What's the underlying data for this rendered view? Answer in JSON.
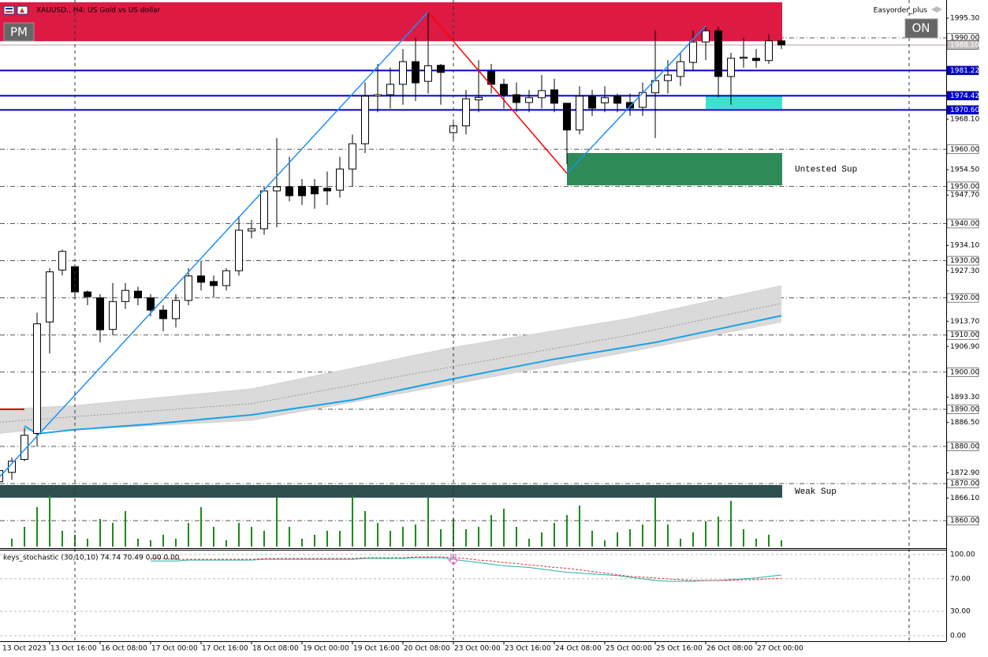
{
  "ui": {
    "pm": "PM",
    "on": "ON",
    "expert": "Easyorder_plus"
  },
  "chart_data": [
    {
      "type": "candlestick",
      "title": "XAUUSD., H4: US Gold vs US dollar",
      "categories": [
        "13 Oct 2023",
        null,
        null,
        null,
        "13 Oct 16:00",
        null,
        null,
        null,
        "16 Oct 08:00",
        null,
        null,
        null,
        "17 Oct 00:00",
        null,
        null,
        null,
        "17 Oct 16:00",
        null,
        null,
        null,
        "18 Oct 08:00",
        null,
        null,
        null,
        "19 Oct 00:00",
        null,
        null,
        null,
        "19 Oct 16:00",
        null,
        null,
        null,
        "20 Oct 08:00",
        null,
        null,
        null,
        "23 Oct 00:00",
        null,
        null,
        null,
        "23 Oct 16:00",
        null,
        null,
        null,
        "24 Oct 08:00",
        null,
        null,
        null,
        "25 Oct 00:00",
        null,
        null,
        null,
        "25 Oct 16:00",
        null,
        null,
        null,
        "26 Oct 08:00",
        null,
        null,
        null,
        "27 Oct 00:00",
        null,
        null
      ],
      "open": [
        1870.5,
        1873,
        1876.5,
        1883.5,
        1913.5,
        1927.5,
        1928.4,
        1921.6,
        1920,
        1911.5,
        1919,
        1921.8,
        1920,
        1916.7,
        1914.4,
        1919.3,
        1925.9,
        1924.4,
        1923.3,
        1927.3,
        1938,
        1938.6,
        1948.8,
        1949.9,
        1950,
        1950,
        1949.5,
        1949,
        1954.7,
        1961.5,
        1974.3,
        1974.7,
        1977.5,
        1983.6,
        1978.3,
        1982.6,
        1964.5,
        1966.3,
        1973.3,
        1981,
        1977.5,
        1974.7,
        1972.6,
        1973.9,
        1976,
        1972.4,
        1965.2,
        1974.3,
        1972.5,
        1974.3,
        1972.6,
        1971.3,
        1975.2,
        1978.5,
        1979.6,
        1983.4,
        1988.9,
        1991.9,
        1979.6,
        1984.5,
        1984.5,
        1983.9,
        1989.2
      ],
      "high": [
        1875,
        1877,
        1885,
        1916,
        1928,
        1933,
        1929,
        1922,
        1921,
        1924,
        1924,
        1923,
        1921,
        1918,
        1921,
        1928,
        1930,
        1926,
        1928,
        1942,
        1941,
        1950,
        1963,
        1958,
        1952,
        1952,
        1954,
        1958,
        1964,
        1978,
        1983,
        1982,
        1987,
        1990,
        1997,
        1983,
        1968,
        1976,
        1984,
        1983,
        1979,
        1978,
        1976,
        1980,
        1979,
        1972.5,
        1977,
        1976,
        1977,
        1975,
        1975,
        1978,
        1992,
        1984,
        1986,
        1992,
        1993,
        1993,
        1986,
        1990,
        1987,
        1991,
        1989.5
      ],
      "low": [
        1869,
        1871,
        1876,
        1880,
        1905,
        1926,
        1920,
        1918,
        1908,
        1910,
        1917,
        1918,
        1915,
        1911,
        1912,
        1918,
        1922,
        1920,
        1922,
        1926,
        1936,
        1937,
        1939,
        1946,
        1945,
        1944,
        1945,
        1947,
        1950,
        1959,
        1970,
        1971,
        1972,
        1973,
        1975,
        1972,
        1962,
        1964,
        1970,
        1975,
        1971,
        1970,
        1970,
        1971,
        1970,
        1956,
        1964,
        1969,
        1970,
        1970,
        1969,
        1969,
        1963,
        1975,
        1977,
        1981,
        1984,
        1974,
        1972,
        1982,
        1982,
        1983,
        1987
      ],
      "close": [
        1873.5,
        1876,
        1883,
        1913,
        1927,
        1932.5,
        1921.6,
        1920.3,
        1911.4,
        1919,
        1922,
        1920,
        1916.7,
        1914.4,
        1919.3,
        1925.9,
        1924.2,
        1923.3,
        1927.3,
        1938.2,
        1938.6,
        1948.8,
        1949.9,
        1947.5,
        1947.5,
        1948,
        1948.8,
        1954.7,
        1961.5,
        1974.3,
        1974.7,
        1977.5,
        1983.6,
        1977.9,
        1982.5,
        1980.7,
        1966.3,
        1973.6,
        1974,
        1977.5,
        1974.7,
        1972.6,
        1973.9,
        1975.8,
        1972.4,
        1965.2,
        1974.3,
        1971.1,
        1973.9,
        1972.4,
        1971.1,
        1975.3,
        1978.5,
        1980,
        1983.6,
        1988.9,
        1991.9,
        1979.6,
        1984.5,
        1984.8,
        1983.9,
        1989.2,
        1988.1
      ],
      "up_color": "#ffffff",
      "down_color": "#000000",
      "ylim": [
        1852.6,
        2000.2
      ],
      "yticks": [
        {
          "value": 1995.3,
          "label": "1995.30"
        },
        {
          "value": 1968.1,
          "label": "1968.10"
        },
        {
          "value": 1954.5,
          "label": "1954.50"
        },
        {
          "value": 1947.7,
          "label": "1947.70"
        },
        {
          "value": 1934.1,
          "label": "1934.10"
        },
        {
          "value": 1927.3,
          "label": "1927.30"
        },
        {
          "value": 1913.7,
          "label": "1913.70"
        },
        {
          "value": 1906.9,
          "label": "1906.90"
        },
        {
          "value": 1893.3,
          "label": "1893.30"
        },
        {
          "value": 1886.5,
          "label": "1886.50"
        },
        {
          "value": 1872.9,
          "label": "1872.90"
        },
        {
          "value": 1866.1,
          "label": "1866.10"
        }
      ],
      "levels": [
        {
          "value": 1990,
          "label": "1990.00"
        },
        {
          "value": 1960,
          "label": "1960.00"
        },
        {
          "value": 1950,
          "label": "1950.00"
        },
        {
          "value": 1940,
          "label": "1940.00"
        },
        {
          "value": 1930,
          "label": "1930.00"
        },
        {
          "value": 1920,
          "label": "1920.00"
        },
        {
          "value": 1910,
          "label": "1910.00"
        },
        {
          "value": 1900,
          "label": "1900.00"
        },
        {
          "value": 1890,
          "label": "1890.00"
        },
        {
          "value": 1880,
          "label": "1880.00"
        },
        {
          "value": 1870,
          "label": "1870.00"
        },
        {
          "value": 1860,
          "label": "1860.00"
        }
      ],
      "lines": [
        {
          "value": 1981.22,
          "label": "1981.22"
        },
        {
          "value": 1974.42,
          "label": "1974.42"
        },
        {
          "value": 1970.6,
          "label": "1970.60"
        }
      ],
      "lines_color": "#0000cd",
      "ask": {
        "value": 1988.1,
        "label": "1988.10"
      },
      "zones": [
        {
          "top": 1999.6,
          "bottom": 1989.1,
          "x_start": 0,
          "color": "#dc1a42"
        },
        {
          "top": 1869.6,
          "bottom": 1866.2,
          "x_start": 0,
          "color": "#2f4f4f",
          "label": "Weak Sup"
        },
        {
          "top": 1959,
          "bottom": 1950.3,
          "x_start": 45,
          "color": "#2e8b57",
          "label": "Untested Sup"
        },
        {
          "top": 1974.5,
          "bottom": 1970.9,
          "x_start": 56,
          "color": "#40e0d0"
        }
      ],
      "zigzag": {
        "x": [
          0,
          34,
          45,
          56
        ],
        "values": [
          1871.7,
          1997,
          1953.5,
          1993.2
        ],
        "up_color": "#1e90ff",
        "down_color": "#ff0000"
      },
      "ma": [
        {
          "x": [
            0,
            2
          ],
          "values": [
            1890,
            1890
          ],
          "color": "#d40000"
        },
        {
          "x": [
            2,
            3,
            6,
            12,
            20,
            28,
            36,
            44,
            52,
            62
          ],
          "values": [
            1885.5,
            1883.4,
            1884.5,
            1886,
            1888.5,
            1892.5,
            1898.2,
            1903.5,
            1908,
            1915.2
          ],
          "color": "#1aa3e8"
        }
      ],
      "band": {
        "color": "#dadada",
        "upper": {
          "x": [
            0,
            6,
            20,
            36,
            50,
            62
          ],
          "values": [
            1889.9,
            1891,
            1895.5,
            1906.7,
            1914.5,
            1923.3
          ]
        },
        "middle": {
          "x": [
            0,
            20,
            36,
            50,
            62
          ],
          "values": [
            1886.5,
            1891.5,
            1901.5,
            1910,
            1918.5
          ]
        },
        "lower": {
          "x": [
            0,
            3,
            6,
            20,
            36,
            50,
            62
          ],
          "values": [
            1883.5,
            1884.5,
            1884.5,
            1887,
            1896.8,
            1905.5,
            1913.5
          ]
        }
      },
      "volume": {
        "color": "#1b8a1b",
        "ylim": [
          0,
          73
        ],
        "values": [
          5,
          10,
          25,
          50,
          65,
          20,
          15,
          10,
          35,
          30,
          45,
          10,
          8,
          15,
          10,
          30,
          50,
          25,
          8,
          30,
          25,
          20,
          62,
          25,
          10,
          15,
          20,
          20,
          65,
          45,
          30,
          20,
          25,
          28,
          62,
          22,
          35,
          22,
          25,
          40,
          48,
          25,
          10,
          18,
          30,
          40,
          52,
          20,
          8,
          18,
          22,
          28,
          62,
          28,
          10,
          18,
          32,
          38,
          58,
          22,
          10,
          15,
          8
        ]
      }
    },
    {
      "type": "line",
      "title": "keys_stochastic (30,10,10) 74.74 70.49 0.00 0.00",
      "ylim": [
        -6.8,
        105.8
      ],
      "yticks": [
        {
          "value": 100,
          "label": "100.00"
        },
        {
          "value": 70,
          "label": "70.00"
        },
        {
          "value": 30,
          "label": "30.00"
        },
        {
          "value": 0,
          "label": "0.00"
        }
      ],
      "series": [
        {
          "color": "#20b2aa",
          "values": [
            null,
            null,
            null,
            null,
            null,
            null,
            null,
            null,
            null,
            null,
            null,
            null,
            92,
            92,
            92,
            93,
            93,
            93,
            93,
            93,
            93,
            94,
            94,
            94,
            94,
            94,
            94,
            94,
            94,
            95,
            95,
            95,
            95,
            96,
            96,
            96,
            94,
            92,
            90,
            88,
            86,
            85,
            84,
            82,
            80,
            78,
            77,
            76,
            75,
            74,
            72,
            70,
            68,
            67,
            67,
            67,
            68,
            68,
            69,
            70,
            71,
            73,
            74.74
          ]
        },
        {
          "color": "#e03030",
          "dash": true,
          "values": [
            null,
            null,
            null,
            null,
            null,
            null,
            null,
            null,
            null,
            null,
            null,
            null,
            95,
            95,
            94,
            94,
            94,
            94,
            94,
            94,
            94,
            95,
            95,
            95,
            95,
            95,
            95,
            95,
            95,
            96,
            96,
            96,
            96,
            97,
            97,
            97,
            96,
            95,
            93,
            92,
            90,
            89,
            87,
            86,
            84,
            83,
            81,
            79,
            77,
            75,
            73,
            72,
            71,
            70,
            69,
            68,
            68,
            68,
            68,
            69,
            69,
            70,
            70.49
          ]
        }
      ]
    }
  ]
}
